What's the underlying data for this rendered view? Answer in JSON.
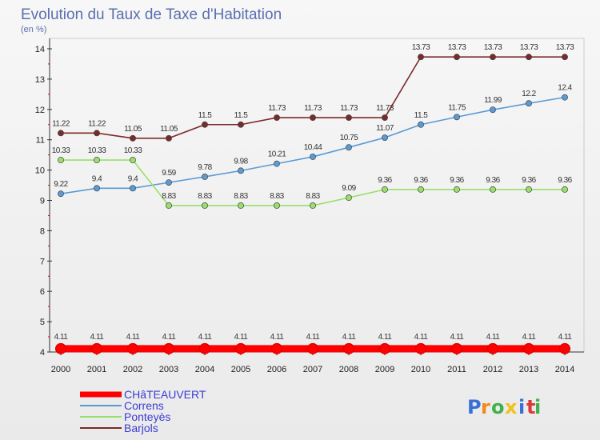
{
  "chart_data": {
    "type": "line",
    "title": "Evolution du Taux de Taxe d'Habitation",
    "subtitle": "(en %)",
    "xlabel": "",
    "ylabel": "",
    "categories": [
      "2000",
      "2001",
      "2002",
      "2003",
      "2004",
      "2005",
      "2006",
      "2007",
      "2008",
      "2009",
      "2010",
      "2011",
      "2012",
      "2013",
      "2014"
    ],
    "ylim": [
      4,
      14
    ],
    "yticks": [
      4,
      5,
      6,
      7,
      8,
      9,
      10,
      11,
      12,
      13,
      14
    ],
    "grid": false,
    "legend_position": "bottom-left",
    "series": [
      {
        "name": "CHâTEAUVERT",
        "color": "#ff0000",
        "values": [
          4.11,
          4.11,
          4.11,
          4.11,
          4.11,
          4.11,
          4.11,
          4.11,
          4.11,
          4.11,
          4.11,
          4.11,
          4.11,
          4.11,
          4.11
        ]
      },
      {
        "name": "Correns",
        "color": "#5b9bd5",
        "values": [
          9.22,
          9.4,
          9.4,
          9.59,
          9.78,
          9.98,
          10.21,
          10.44,
          10.75,
          11.07,
          11.5,
          11.75,
          11.99,
          12.2,
          12.4
        ]
      },
      {
        "name": "Ponteyès",
        "color": "#99e06a",
        "values": [
          10.33,
          10.33,
          10.33,
          8.83,
          8.83,
          8.83,
          8.83,
          8.83,
          9.09,
          9.36,
          9.36,
          9.36,
          9.36,
          9.36,
          9.36
        ]
      },
      {
        "name": "Barjols",
        "color": "#7b2a2a",
        "values": [
          11.22,
          11.22,
          11.05,
          11.05,
          11.5,
          11.5,
          11.73,
          11.73,
          11.73,
          11.73,
          13.73,
          13.73,
          13.73,
          13.73,
          13.73
        ]
      }
    ]
  },
  "brand": {
    "letters": [
      "P",
      "r",
      "o",
      "x",
      "i",
      "t",
      "i"
    ],
    "colors": [
      "#3a6fd8",
      "#f28a1a",
      "#3fb24a",
      "#f2c21a",
      "#3a6fd8",
      "#d83a3a",
      "#3fb24a"
    ]
  }
}
